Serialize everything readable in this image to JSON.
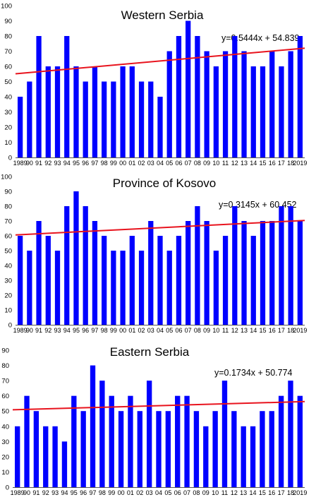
{
  "chart_data": [
    {
      "type": "bar",
      "title": "Western Serbia",
      "equation": "y=0.5444x + 54.839",
      "trend": {
        "slope": 0.5444,
        "intercept": 54.839
      },
      "categories": [
        "1989",
        "90",
        "91",
        "92",
        "93",
        "94",
        "95",
        "96",
        "97",
        "98",
        "99",
        "00",
        "01",
        "02",
        "03",
        "04",
        "05",
        "06",
        "07",
        "08",
        "09",
        "10",
        "11",
        "12",
        "13",
        "14",
        "15",
        "16",
        "17",
        "18",
        "2019"
      ],
      "values": [
        40,
        50,
        80,
        60,
        60,
        80,
        60,
        50,
        60,
        50,
        50,
        60,
        60,
        50,
        50,
        40,
        70,
        80,
        90,
        80,
        70,
        60,
        70,
        80,
        70,
        60,
        60,
        70,
        60,
        70,
        80
      ],
      "ylim": [
        0,
        100
      ],
      "yticks": [
        0,
        10,
        20,
        30,
        40,
        50,
        60,
        70,
        80,
        90,
        100
      ],
      "bar_color": "#0000ff",
      "trend_color": "#e8141e"
    },
    {
      "type": "bar",
      "title": "Province of Kosovo",
      "equation": "y=0.3145x + 60.452",
      "trend": {
        "slope": 0.3145,
        "intercept": 60.452
      },
      "categories": [
        "1989",
        "90",
        "91",
        "92",
        "93",
        "94",
        "95",
        "96",
        "97",
        "98",
        "99",
        "00",
        "01",
        "02",
        "03",
        "04",
        "05",
        "06",
        "07",
        "08",
        "09",
        "10",
        "11",
        "12",
        "13",
        "14",
        "15",
        "16",
        "17",
        "18",
        "2019"
      ],
      "values": [
        60,
        50,
        70,
        60,
        50,
        80,
        90,
        80,
        70,
        60,
        50,
        50,
        60,
        50,
        70,
        60,
        50,
        60,
        70,
        80,
        70,
        50,
        60,
        80,
        70,
        60,
        70,
        70,
        80,
        80,
        70
      ],
      "ylim": [
        0,
        100
      ],
      "yticks": [
        0,
        10,
        20,
        30,
        40,
        50,
        60,
        70,
        80,
        90,
        100
      ],
      "bar_color": "#0000ff",
      "trend_color": "#e8141e"
    },
    {
      "type": "bar",
      "title": "Eastern Serbia",
      "equation": "y=0.1734x + 50.774",
      "trend": {
        "slope": 0.1734,
        "intercept": 50.774
      },
      "categories": [
        "1989",
        "90",
        "91",
        "92",
        "93",
        "94",
        "95",
        "96",
        "97",
        "98",
        "99",
        "00",
        "01",
        "02",
        "03",
        "04",
        "05",
        "06",
        "07",
        "08",
        "09",
        "10",
        "11",
        "12",
        "13",
        "14",
        "15",
        "16",
        "17",
        "18",
        "2019"
      ],
      "values": [
        40,
        60,
        50,
        40,
        40,
        30,
        60,
        50,
        80,
        70,
        60,
        50,
        60,
        50,
        70,
        50,
        50,
        60,
        60,
        50,
        40,
        50,
        70,
        50,
        40,
        40,
        50,
        50,
        60,
        70,
        60
      ],
      "ylim": [
        0,
        90
      ],
      "yticks": [
        0,
        10,
        20,
        30,
        40,
        50,
        60,
        70,
        80,
        90
      ],
      "bar_color": "#0000ff",
      "trend_color": "#e8141e"
    }
  ]
}
